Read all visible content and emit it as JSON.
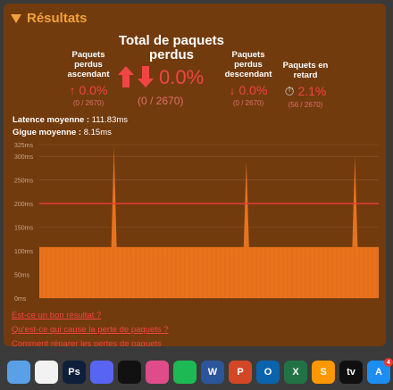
{
  "header": {
    "title": "Résultats"
  },
  "stats": {
    "upload": {
      "label_lines": [
        "Paquets",
        "perdus",
        "ascendant"
      ],
      "value": "0.0%",
      "sub": "(0 / 2670)"
    },
    "total": {
      "title_lines": [
        "Total de paquets",
        "perdus"
      ],
      "value": "0.0%",
      "sub": "(0 / 2670)"
    },
    "download": {
      "label_lines": [
        "Paquets",
        "perdus",
        "descendant"
      ],
      "value": "0.0%",
      "sub": "(0 / 2670)"
    },
    "late": {
      "label_lines": [
        "Paquets en",
        "retard"
      ],
      "value": "2.1%",
      "sub": "(56 / 2670)"
    }
  },
  "latency": {
    "label": "Latence moyenne :",
    "value": "111.83ms"
  },
  "jitter": {
    "label": "Gigue moyenne :",
    "value": "8.15ms"
  },
  "chart_data": {
    "type": "area",
    "title": "",
    "xlabel": "",
    "ylabel": "",
    "ylim": [
      0,
      325
    ],
    "y_ticks": [
      "0ms",
      "50ms",
      "100ms",
      "150ms",
      "200ms",
      "250ms",
      "300ms",
      "325ms"
    ],
    "y_tick_values": [
      0,
      50,
      100,
      150,
      200,
      250,
      300,
      325
    ],
    "threshold": 200,
    "baseline": 108,
    "spikes": [
      {
        "at_fraction": 0.22,
        "value": 320
      },
      {
        "at_fraction": 0.61,
        "value": 290
      },
      {
        "at_fraction": 0.93,
        "value": 300
      }
    ],
    "colors": {
      "area": "#e8731d",
      "threshold": "#e53b3b",
      "grid": "#8a5a33"
    }
  },
  "links": [
    "Est-ce un bon résultat ?",
    "Qu'est-ce qui cause la perte de paquets ?",
    "Comment réparer les pertes de paquets"
  ],
  "dock": {
    "items": [
      {
        "name": "finder-icon",
        "label": "",
        "color": "#5aa0e6"
      },
      {
        "name": "photos-icon",
        "label": "",
        "color": "#f2f2f2"
      },
      {
        "name": "photoshop-icon",
        "label": "Ps",
        "color": "#0d1f3a"
      },
      {
        "name": "discord-icon",
        "label": "",
        "color": "#5865f2"
      },
      {
        "name": "black-circle-app-icon",
        "label": "",
        "color": "#111111"
      },
      {
        "name": "pink-app-icon",
        "label": "",
        "color": "#e04c8a"
      },
      {
        "name": "spotify-icon",
        "label": "",
        "color": "#1db954"
      },
      {
        "name": "word-icon",
        "label": "W",
        "color": "#2b579a"
      },
      {
        "name": "powerpoint-icon",
        "label": "P",
        "color": "#d24726"
      },
      {
        "name": "outlook-icon",
        "label": "O",
        "color": "#0a64ad"
      },
      {
        "name": "excel-icon",
        "label": "X",
        "color": "#217346"
      },
      {
        "name": "sublime-icon",
        "label": "S",
        "color": "#ff9800"
      },
      {
        "name": "appletv-icon",
        "label": "tv",
        "color": "#0f0f0f"
      },
      {
        "name": "appstore-icon",
        "label": "A",
        "color": "#1c8ef2",
        "badge": "4"
      }
    ]
  }
}
